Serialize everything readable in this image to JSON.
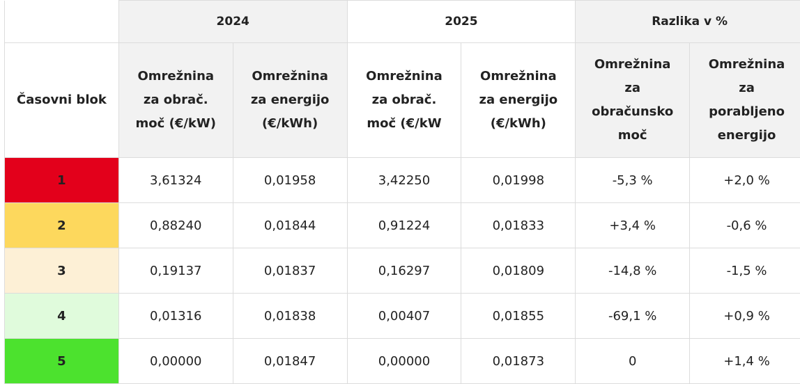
{
  "header": {
    "groups": [
      "2024",
      "2025",
      "Razlika v %"
    ],
    "first_col": "Časovni blok",
    "sub": [
      [
        "Omrežnina",
        "za obrač.",
        "moč (€/kW)"
      ],
      [
        "Omrežnina",
        "za energijo",
        "(€/kWh)"
      ],
      [
        "Omrežnina",
        "za obrač.",
        "moč (€/kW"
      ],
      [
        "Omrežnina",
        "za energijo",
        "(€/kWh)"
      ],
      [
        "Omrežnina",
        "za",
        "obračunsko",
        "moč"
      ],
      [
        "Omrežnina",
        "za",
        "porabljeno",
        "energijo"
      ]
    ]
  },
  "rows": [
    {
      "block": "1",
      "color": "#e3001b",
      "cells": [
        "3,61324",
        "0,01958",
        "3,42250",
        "0,01998",
        "-5,3 %",
        "+2,0 %"
      ]
    },
    {
      "block": "2",
      "color": "#fdd85d",
      "cells": [
        "0,88240",
        "0,01844",
        "0,91224",
        "0,01833",
        "+3,4 %",
        "-0,6 %"
      ]
    },
    {
      "block": "3",
      "color": "#fdf0d6",
      "cells": [
        "0,19137",
        "0,01837",
        "0,16297",
        "0,01809",
        "-14,8 %",
        "-1,5 %"
      ]
    },
    {
      "block": "4",
      "color": "#e0fbdc",
      "cells": [
        "0,01316",
        "0,01838",
        "0,00407",
        "0,01855",
        "-69,1 %",
        "+0,9 %"
      ]
    },
    {
      "block": "5",
      "color": "#4ce22e",
      "cells": [
        "0,00000",
        "0,01847",
        "0,00000",
        "0,01873",
        "0",
        "+1,4 %"
      ]
    }
  ]
}
